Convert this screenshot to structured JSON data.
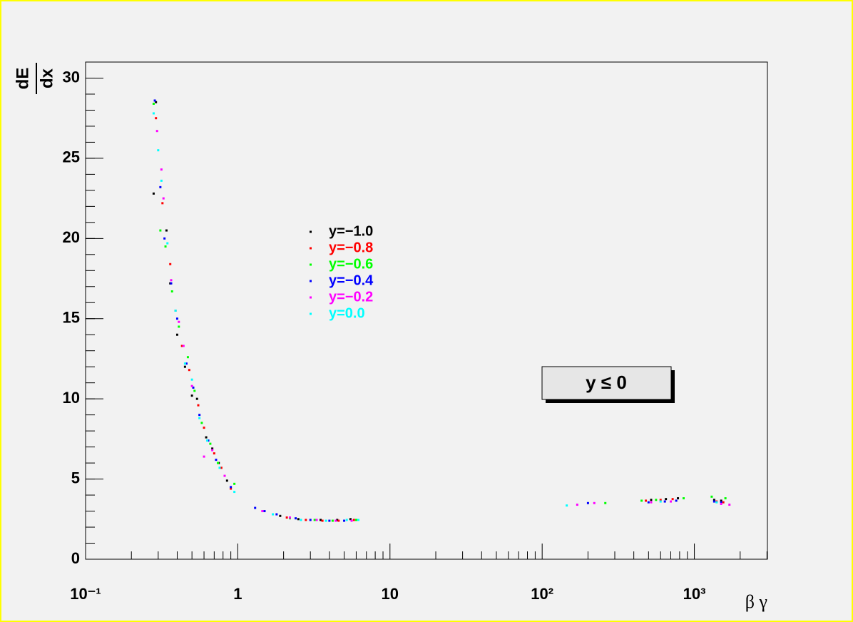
{
  "chart_data": {
    "type": "scatter",
    "y_label_numerator": "dE",
    "y_label_denominator": "dx",
    "x_label": "β γ",
    "annotation": "y ≤ 0",
    "log_x": true,
    "xlim": [
      0.1,
      3020
    ],
    "ylim": [
      0,
      31
    ],
    "xticks": [
      {
        "value": 0.1,
        "label": "10⁻¹"
      },
      1,
      10,
      {
        "value": 100,
        "label": "10²"
      },
      {
        "value": 1000,
        "label": "10³"
      }
    ],
    "yticks": [
      0,
      5,
      10,
      15,
      20,
      25,
      30
    ],
    "series": [
      {
        "name": "y=−1.0",
        "color": "#000000",
        "x": [
          0.28,
          0.29,
          0.34,
          0.36,
          0.4,
          0.45,
          0.5,
          0.54,
          0.62,
          0.68,
          0.75,
          0.85,
          1.9,
          2.5,
          3.5,
          4.5,
          5.5,
          520,
          650,
          780,
          1350,
          1500
        ],
        "values": [
          22.8,
          28.5,
          20.5,
          17.2,
          14.0,
          12.0,
          10.2,
          10.0,
          7.6,
          6.9,
          6.0,
          4.9,
          2.7,
          2.5,
          2.45,
          2.45,
          2.5,
          3.7,
          3.75,
          3.8,
          3.7,
          3.65
        ]
      },
      {
        "name": "y=−0.8",
        "color": "#ff0000",
        "x": [
          0.29,
          0.32,
          0.36,
          0.39,
          0.43,
          0.48,
          0.55,
          0.6,
          0.7,
          0.78,
          0.9,
          2.1,
          2.8,
          3.6,
          4.6,
          5.8,
          480,
          600,
          720,
          1400,
          1550
        ],
        "values": [
          27.5,
          22.2,
          18.4,
          15.5,
          13.3,
          11.8,
          9.6,
          8.2,
          6.6,
          5.7,
          4.4,
          2.6,
          2.45,
          2.4,
          2.4,
          2.45,
          3.65,
          3.7,
          3.75,
          3.6,
          3.55
        ]
      },
      {
        "name": "y=−0.6",
        "color": "#00ff00",
        "x": [
          0.28,
          0.31,
          0.335,
          0.37,
          0.41,
          0.47,
          0.52,
          0.58,
          0.66,
          0.74,
          0.95,
          2.2,
          3.2,
          4.2,
          6.0,
          260,
          450,
          560,
          850,
          1300,
          1600
        ],
        "values": [
          28.4,
          20.5,
          19.5,
          16.7,
          14.5,
          12.6,
          10.5,
          8.5,
          7.2,
          6.0,
          4.7,
          2.55,
          2.45,
          2.4,
          2.45,
          3.5,
          3.65,
          3.7,
          3.8,
          3.9,
          3.8
        ]
      },
      {
        "name": "y=−0.4",
        "color": "#0000ff",
        "x": [
          0.285,
          0.31,
          0.33,
          0.365,
          0.4,
          0.46,
          0.51,
          0.56,
          0.64,
          0.72,
          0.9,
          1.3,
          1.5,
          1.8,
          2.4,
          3.0,
          4.0,
          5.0,
          200,
          500,
          640,
          760,
          1350,
          1500
        ],
        "values": [
          28.6,
          23.2,
          20.0,
          17.2,
          15.0,
          12.2,
          10.7,
          9.0,
          7.4,
          6.2,
          4.5,
          3.2,
          3.0,
          2.8,
          2.55,
          2.45,
          2.4,
          2.4,
          3.5,
          3.55,
          3.6,
          3.65,
          3.6,
          3.55
        ]
      },
      {
        "name": "y=−0.2",
        "color": "#ff00ff",
        "x": [
          0.295,
          0.315,
          0.325,
          0.365,
          0.41,
          0.44,
          0.5,
          0.6,
          0.68,
          0.82,
          1.45,
          2.2,
          3.3,
          4.4,
          5.6,
          170,
          220,
          520,
          700,
          1500,
          1700
        ],
        "values": [
          26.7,
          24.3,
          22.5,
          17.4,
          14.8,
          13.3,
          10.8,
          6.4,
          6.8,
          5.2,
          3.0,
          2.6,
          2.45,
          2.4,
          2.4,
          3.4,
          3.5,
          3.55,
          3.6,
          3.45,
          3.4
        ]
      },
      {
        "name": "y=0.0",
        "color": "#00ffff",
        "x": [
          0.28,
          0.3,
          0.315,
          0.345,
          0.39,
          0.45,
          0.5,
          0.56,
          0.63,
          0.76,
          0.95,
          1.7,
          2.6,
          3.8,
          5.2,
          6.2,
          145,
          600,
          1400
        ],
        "values": [
          27.8,
          25.5,
          23.6,
          19.7,
          15.5,
          12.2,
          11.2,
          8.8,
          7.4,
          5.7,
          4.2,
          2.8,
          2.45,
          2.4,
          2.45,
          2.45,
          3.35,
          3.6,
          3.55
        ]
      }
    ]
  }
}
